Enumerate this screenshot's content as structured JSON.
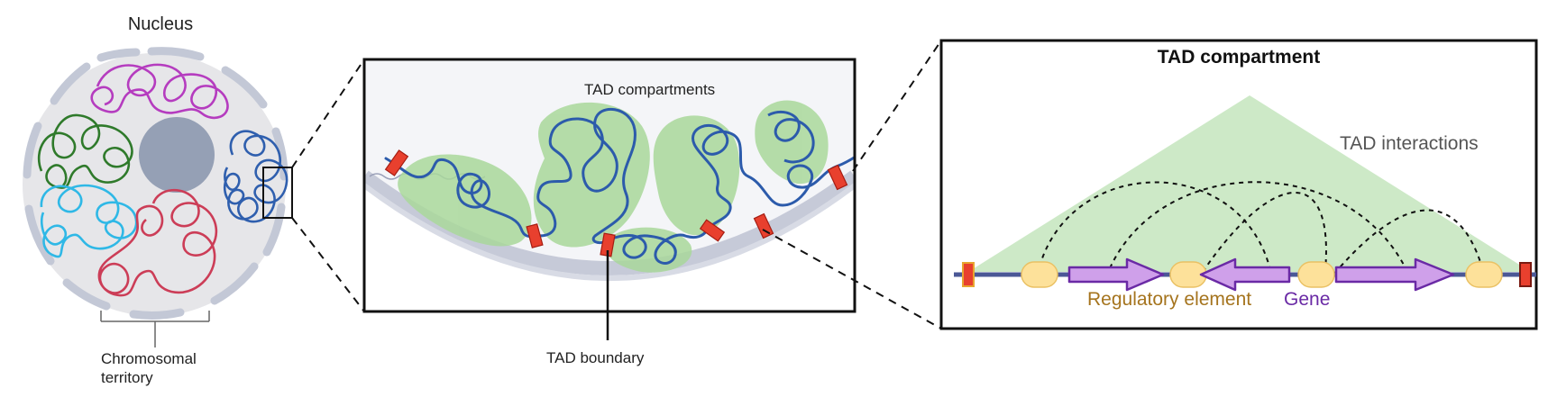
{
  "labels": {
    "nucleus": "Nucleus",
    "chromosomal_territory": "Chromosomal territory",
    "tad_compartments": "TAD compartments",
    "tad_boundary": "TAD boundary",
    "tad_compartment_title": "TAD compartment",
    "tad_interactions": "TAD interactions",
    "regulatory_element": "Regulatory element",
    "gene": "Gene"
  },
  "colors": {
    "regulatory_element": "#a5741e",
    "gene": "#6a2aa5",
    "boundary": "#e8402e",
    "tad_fill": "#cde9c7",
    "chromatin": "#2c5bab",
    "dna_line": "#3b4a8c",
    "territory_green": "#2f7a2b",
    "territory_magenta": "#b53cbf",
    "territory_cyan": "#2fb8e6",
    "territory_red": "#cc3d57",
    "territory_blue": "#2f5fae",
    "nucleolus": "#95a0b5",
    "nucleus_fill": "#e6e6e9"
  }
}
